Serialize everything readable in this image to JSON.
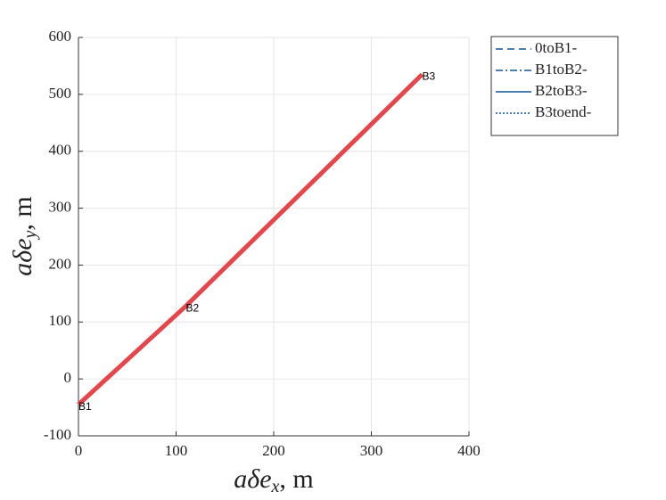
{
  "chart_data": {
    "type": "line",
    "xlabel": {
      "base": "aδe",
      "sub": "x",
      "unit": ", m"
    },
    "ylabel": {
      "base": "aδe",
      "sub": "y",
      "unit": ", m"
    },
    "xlim": [
      0,
      400
    ],
    "xticks": [
      0,
      100,
      200,
      300,
      400
    ],
    "ylim": [
      -100,
      600
    ],
    "yticks": [
      -100,
      0,
      100,
      200,
      300,
      400,
      500,
      600
    ],
    "grid": true,
    "trajectory": {
      "color": "#e5464b",
      "x": [
        0,
        110,
        352
      ],
      "y": [
        -45,
        128,
        535
      ]
    },
    "annotations": [
      {
        "text": "B1",
        "x": 0,
        "y": -45
      },
      {
        "text": "B2",
        "x": 110,
        "y": 128
      },
      {
        "text": "B3",
        "x": 352,
        "y": 535
      }
    ],
    "legend_position": "outside-right",
    "series": [
      {
        "name": "0toB1-",
        "color": "#4a7fb0",
        "dash": "8 5"
      },
      {
        "name": "B1toB2-",
        "color": "#4a7fb0",
        "dash": "8 3 2 3"
      },
      {
        "name": "B2toB3-",
        "color": "#4a7fb0",
        "dash": "none"
      },
      {
        "name": "B3toend-",
        "color": "#4a7fb0",
        "dash": "2 2"
      }
    ]
  }
}
